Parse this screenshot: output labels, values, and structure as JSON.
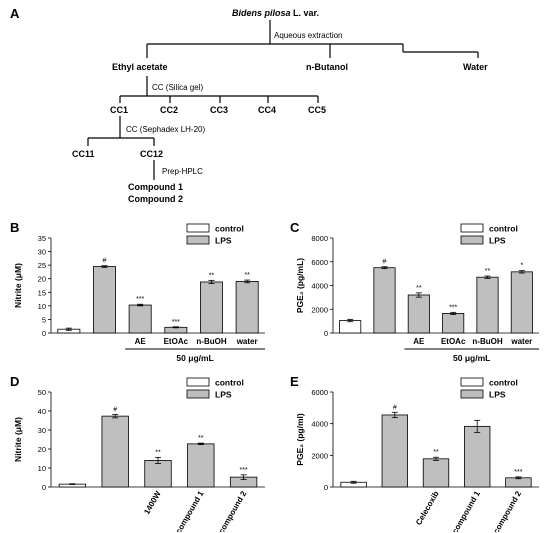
{
  "panel_letters": {
    "a": "A",
    "b": "B",
    "c": "C",
    "d": "D",
    "e": "E"
  },
  "flow": {
    "root": "Bidens pilosa",
    "root_suffix": " L. var.",
    "step1": "Aqueous extraction",
    "fractions": [
      "Ethyl acetate",
      "n-Butanol",
      "Water"
    ],
    "step2": "CC (Silica gel)",
    "cc_fractions": [
      "CC1",
      "CC2",
      "CC3",
      "CC4",
      "CC5"
    ],
    "step3": "CC (Sephadex LH-20)",
    "sub_fractions": [
      "CC11",
      "CC12"
    ],
    "step4": "Prep-HPLC",
    "compounds": [
      "Compound 1",
      "Compound 2"
    ]
  },
  "chart_data": [
    {
      "panel": "B",
      "type": "bar",
      "ylabel": "Nitrite (μM)",
      "ylim": [
        0,
        35
      ],
      "yticks": [
        0,
        5,
        10,
        15,
        20,
        25,
        30,
        35
      ],
      "categories": [
        "",
        "",
        "AE",
        "EtOAc",
        "n-BuOH",
        "water"
      ],
      "values": [
        1.4,
        24.5,
        10.3,
        2.1,
        18.8,
        19.0
      ],
      "errors": [
        0.4,
        0.3,
        0.3,
        0.2,
        0.6,
        0.5
      ],
      "fills": [
        "white",
        "gray",
        "gray",
        "gray",
        "gray",
        "gray"
      ],
      "significance": [
        "",
        "#",
        "***",
        "***",
        "**",
        "**"
      ],
      "legend": [
        "control",
        "LPS"
      ],
      "group_label": "50 μg/mL",
      "xlabel_rotated": false
    },
    {
      "panel": "C",
      "type": "bar",
      "ylabel": "PGE₂ (pg/mL)",
      "ylim": [
        0,
        8000
      ],
      "yticks": [
        0,
        2000,
        4000,
        6000,
        8000
      ],
      "categories": [
        "",
        "",
        "AE",
        "EtOAc",
        "n-BuOH",
        "water"
      ],
      "values": [
        1050,
        5500,
        3200,
        1650,
        4700,
        5150
      ],
      "errors": [
        100,
        80,
        180,
        90,
        100,
        100
      ],
      "fills": [
        "white",
        "gray",
        "gray",
        "gray",
        "gray",
        "gray"
      ],
      "significance": [
        "",
        "#",
        "**",
        "***",
        "**",
        "*"
      ],
      "legend": [
        "control",
        "LPS"
      ],
      "group_label": "50 μg/mL",
      "xlabel_rotated": false
    },
    {
      "panel": "D",
      "type": "bar",
      "ylabel": "Nitrite (μM)",
      "ylim": [
        0,
        50
      ],
      "yticks": [
        0,
        10,
        20,
        30,
        40,
        50
      ],
      "categories": [
        "",
        "",
        "1400W",
        "compound 1",
        "compound 2"
      ],
      "values": [
        1.5,
        37.3,
        14.0,
        22.7,
        5.2
      ],
      "errors": [
        0.2,
        0.9,
        1.6,
        0.4,
        1.2
      ],
      "fills": [
        "white",
        "gray",
        "gray",
        "gray",
        "gray"
      ],
      "significance": [
        "",
        "#",
        "**",
        "**",
        "***"
      ],
      "legend": [
        "control",
        "LPS"
      ],
      "xlabel_rotated": true
    },
    {
      "panel": "E",
      "type": "bar",
      "ylabel": "PGE₂ (pg/ml)",
      "ylim": [
        0,
        6000
      ],
      "yticks": [
        0,
        2000,
        4000,
        6000
      ],
      "categories": [
        "",
        "",
        "Celecoxib",
        "compound 1",
        "compound 2"
      ],
      "values": [
        300,
        4550,
        1780,
        3830,
        580
      ],
      "errors": [
        60,
        170,
        100,
        380,
        60
      ],
      "fills": [
        "white",
        "gray",
        "gray",
        "gray",
        "gray"
      ],
      "significance": [
        "",
        "#",
        "**",
        "",
        "***"
      ],
      "legend": [
        "control",
        "LPS"
      ],
      "xlabel_rotated": true
    }
  ]
}
